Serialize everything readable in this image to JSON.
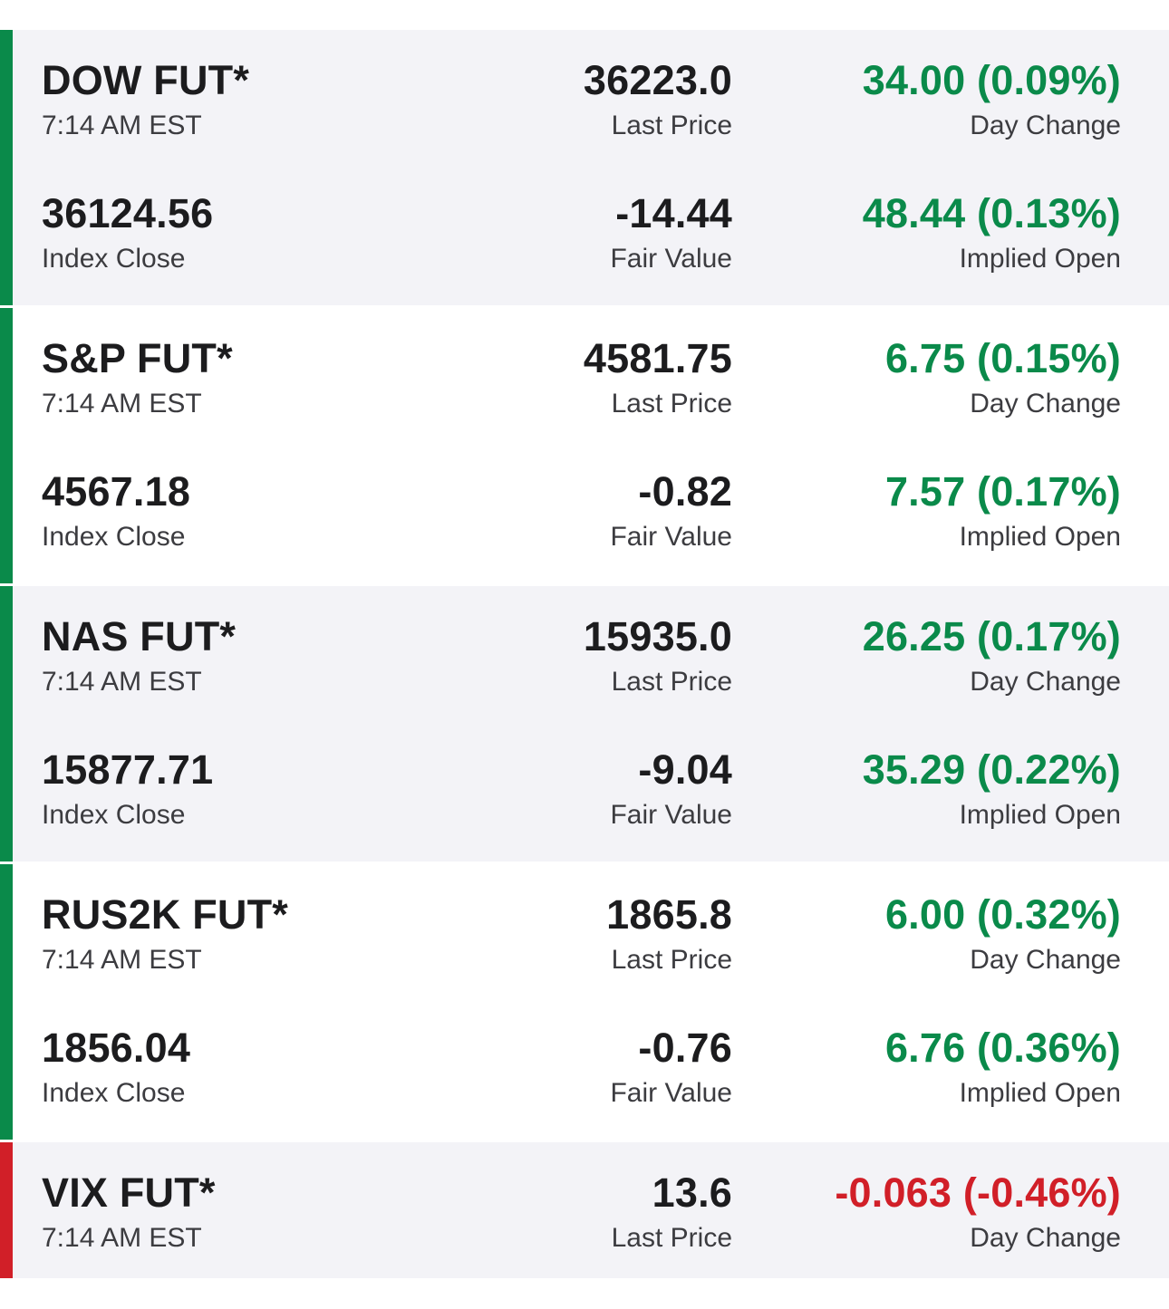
{
  "colors": {
    "positive": "#0a8a4a",
    "negative": "#d11f28",
    "text": "#1c1c1e",
    "subtext": "#3c3c40",
    "shaded_bg": "#f3f3f7"
  },
  "futures": [
    {
      "name": "DOW FUT*",
      "time": "7:14 AM EST",
      "last_price": "36223.0",
      "last_price_label": "Last Price",
      "day_change": "34.00 (0.09%)",
      "day_change_label": "Day Change",
      "index_close": "36124.56",
      "index_close_label": "Index Close",
      "fair_value": "-14.44",
      "fair_value_label": "Fair Value",
      "implied_open": "48.44 (0.13%)",
      "implied_open_label": "Implied Open",
      "trend": "up"
    },
    {
      "name": "S&P FUT*",
      "time": "7:14 AM EST",
      "last_price": "4581.75",
      "last_price_label": "Last Price",
      "day_change": "6.75 (0.15%)",
      "day_change_label": "Day Change",
      "index_close": "4567.18",
      "index_close_label": "Index Close",
      "fair_value": "-0.82",
      "fair_value_label": "Fair Value",
      "implied_open": "7.57 (0.17%)",
      "implied_open_label": "Implied Open",
      "trend": "up"
    },
    {
      "name": "NAS FUT*",
      "time": "7:14 AM EST",
      "last_price": "15935.0",
      "last_price_label": "Last Price",
      "day_change": "26.25 (0.17%)",
      "day_change_label": "Day Change",
      "index_close": "15877.71",
      "index_close_label": "Index Close",
      "fair_value": "-9.04",
      "fair_value_label": "Fair Value",
      "implied_open": "35.29 (0.22%)",
      "implied_open_label": "Implied Open",
      "trend": "up"
    },
    {
      "name": "RUS2K FUT*",
      "time": "7:14 AM EST",
      "last_price": "1865.8",
      "last_price_label": "Last Price",
      "day_change": "6.00 (0.32%)",
      "day_change_label": "Day Change",
      "index_close": "1856.04",
      "index_close_label": "Index Close",
      "fair_value": "-0.76",
      "fair_value_label": "Fair Value",
      "implied_open": "6.76 (0.36%)",
      "implied_open_label": "Implied Open",
      "trend": "up"
    },
    {
      "name": "VIX FUT*",
      "time": "7:14 AM EST",
      "last_price": "13.6",
      "last_price_label": "Last Price",
      "day_change": "-0.063 (-0.46%)",
      "day_change_label": "Day Change",
      "trend": "down"
    }
  ]
}
